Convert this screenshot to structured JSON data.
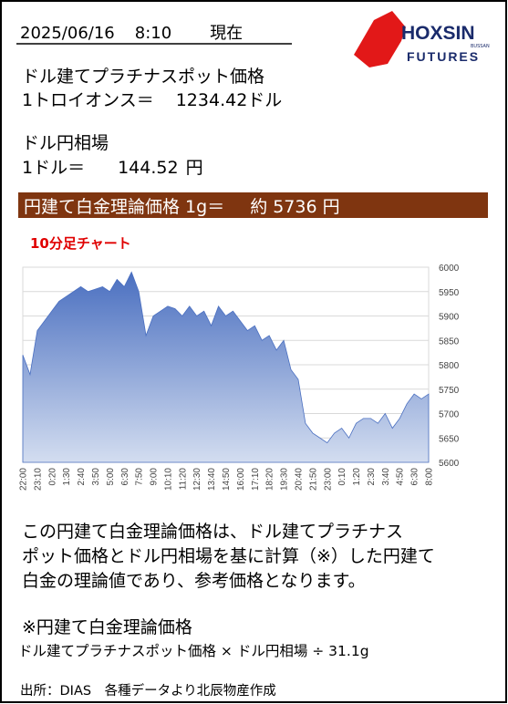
{
  "header": {
    "date": "2025/06/16",
    "time": "8:10",
    "status": "現在"
  },
  "logo": {
    "name": "HOXSIN",
    "sub": "BUSSAN",
    "tag": "FUTURES"
  },
  "spot": {
    "title": "ドル建てプラチナスポット価格",
    "unit": "1トロイオンス＝",
    "value": "1234.42",
    "currency": "ドル"
  },
  "fx": {
    "title": "ドル円相場",
    "unit": "1ドル＝",
    "value": "144.52",
    "currency": "円"
  },
  "result": {
    "label": "円建て白金理論価格 1g＝",
    "approx": "約",
    "value": "5736",
    "unit": "円"
  },
  "chart_data": {
    "type": "area",
    "title": "10分足チャート",
    "categories": [
      "22:00",
      null,
      "23:10",
      null,
      "0:20",
      null,
      "1:30",
      null,
      "2:40",
      null,
      "3:50",
      null,
      "5:00",
      null,
      "6:30",
      null,
      "7:50",
      null,
      "9:00",
      null,
      "10:10",
      null,
      "11:20",
      null,
      "12:30",
      null,
      "13:40",
      null,
      "14:50",
      null,
      "16:00",
      null,
      "17:10",
      null,
      "18:20",
      null,
      "19:30",
      null,
      "20:40",
      null,
      "21:50",
      null,
      "23:00",
      null,
      "0:10",
      null,
      "1:20",
      null,
      "2:30",
      null,
      "3:40",
      null,
      "4:50",
      null,
      "6:30",
      null,
      "8:00"
    ],
    "values": [
      5820,
      5780,
      5870,
      5890,
      5910,
      5930,
      5940,
      5950,
      5960,
      5950,
      5955,
      5960,
      5950,
      5975,
      5960,
      5990,
      5950,
      5860,
      5900,
      5910,
      5920,
      5915,
      5900,
      5920,
      5900,
      5910,
      5880,
      5920,
      5900,
      5910,
      5890,
      5870,
      5880,
      5850,
      5860,
      5830,
      5850,
      5790,
      5770,
      5680,
      5660,
      5650,
      5640,
      5660,
      5670,
      5650,
      5680,
      5690,
      5690,
      5680,
      5700,
      5670,
      5690,
      5720,
      5740,
      5730,
      5740
    ],
    "ylim": [
      5600,
      6000
    ],
    "yticks": [
      5600,
      5650,
      5700,
      5750,
      5800,
      5850,
      5900,
      5950,
      6000
    ],
    "grid": true,
    "color": "#4a6fc0"
  },
  "description": [
    "この円建て白金理論価格は、ドル建てプラチナス",
    "ポット価格とドル円相場を基に計算（※）した円建て",
    "白金の理論値であり、参考価格となります。"
  ],
  "formula": {
    "title": "※円建て白金理論価格",
    "text": "ドル建てプラチナスポット価格 × ドル円相場 ÷ 31.1g"
  },
  "source": "出所：DIAS　各種データより北辰物産作成"
}
